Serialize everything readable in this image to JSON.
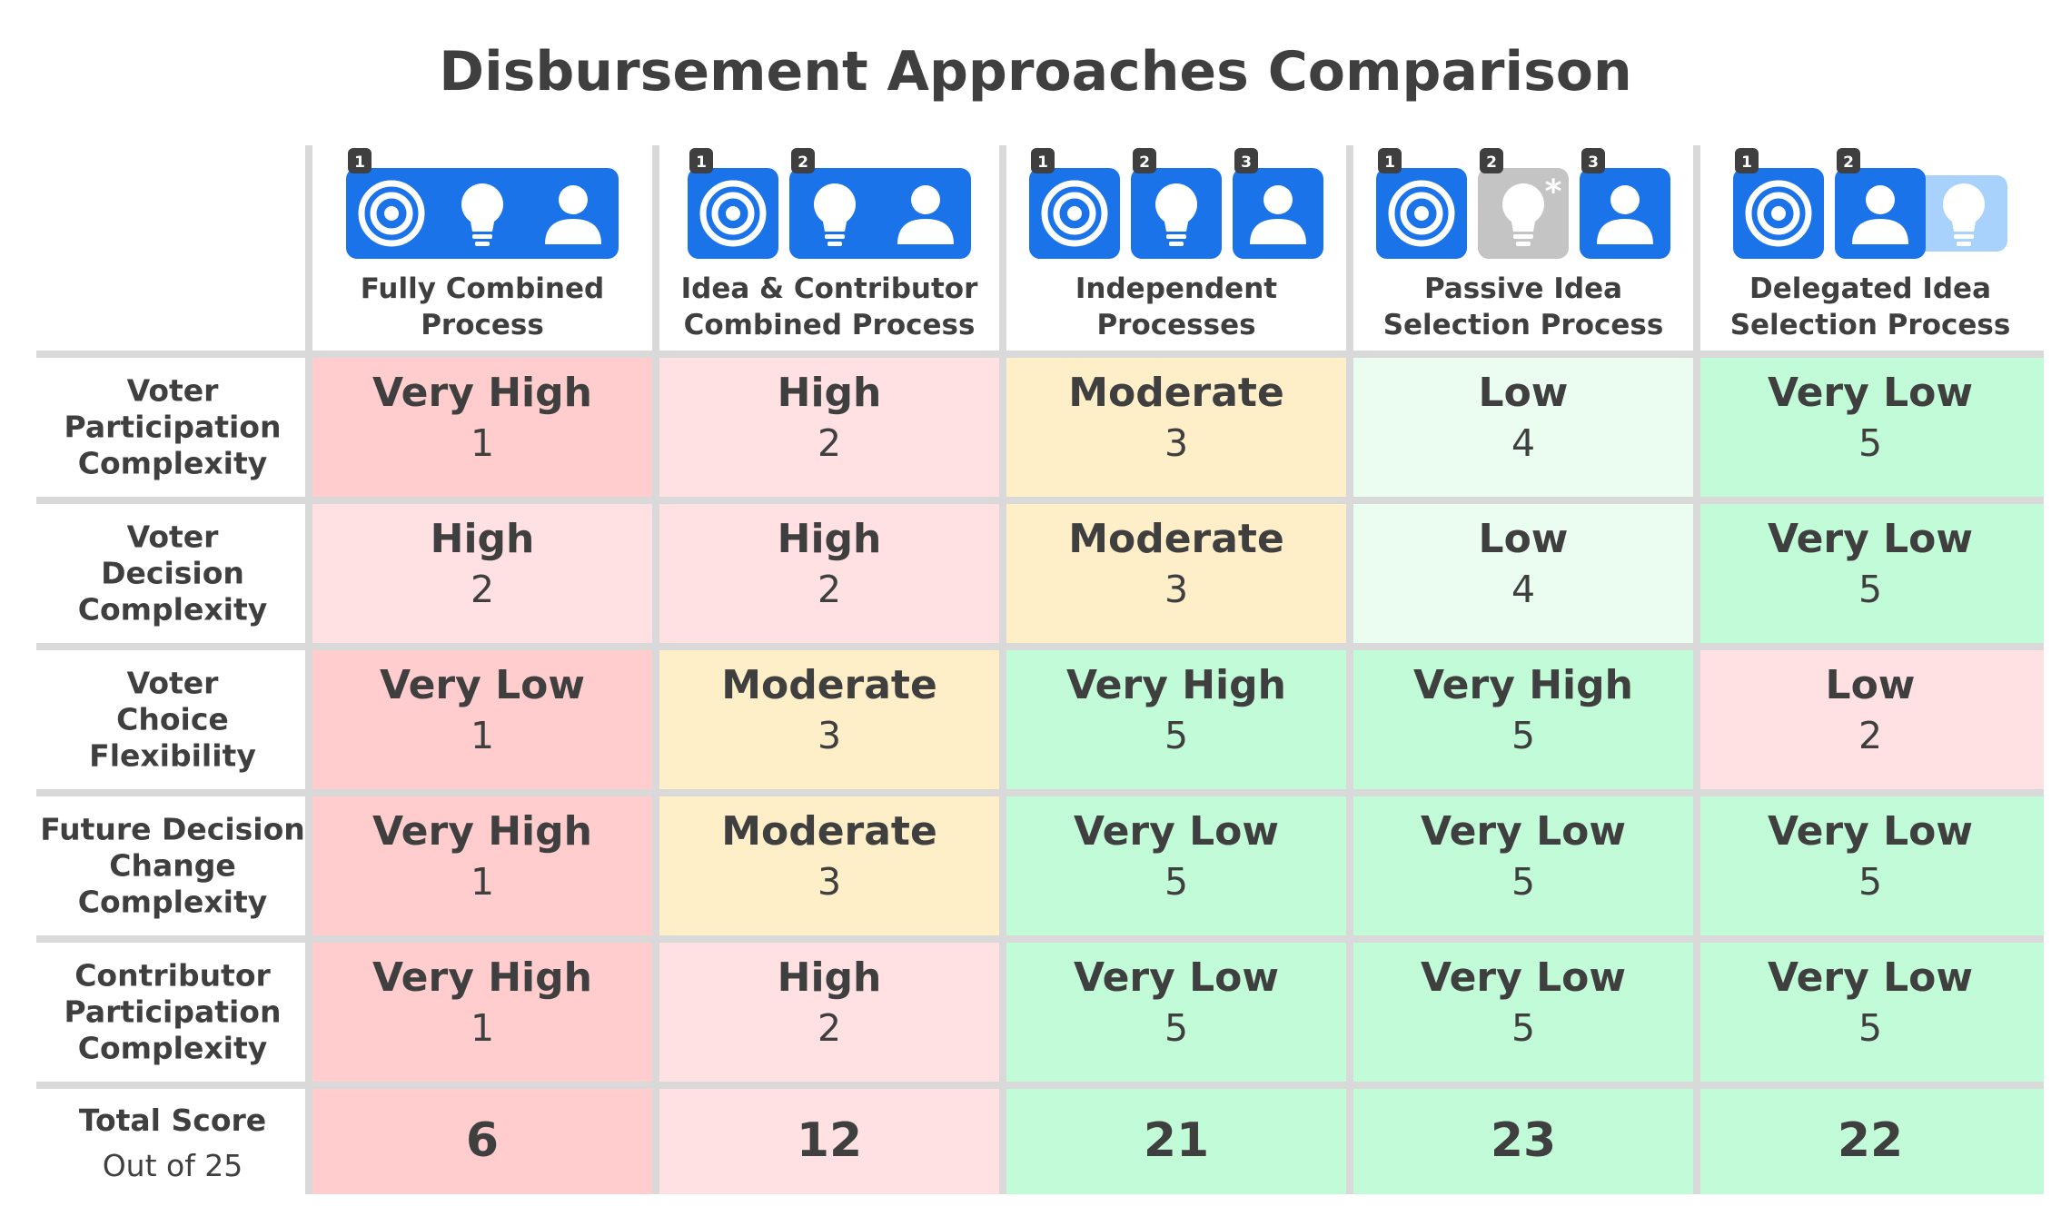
{
  "chart_data": {
    "type": "table",
    "title": "Disbursement Approaches Comparison",
    "columns": [
      {
        "label": [
          "Fully Combined",
          "Process"
        ],
        "groups": [
          {
            "badge": "1",
            "icons": [
              "target-icon",
              "bulb-icon",
              "person-icon"
            ]
          }
        ]
      },
      {
        "label": [
          "Idea & Contributor",
          "Combined Process"
        ],
        "groups": [
          {
            "badge": "1",
            "icons": [
              "target-icon"
            ]
          },
          {
            "badge": "2",
            "icons": [
              "bulb-icon",
              "person-icon"
            ]
          }
        ]
      },
      {
        "label": [
          "Independent",
          "Processes"
        ],
        "groups": [
          {
            "badge": "1",
            "icons": [
              "target-icon"
            ]
          },
          {
            "badge": "2",
            "icons": [
              "bulb-icon"
            ]
          },
          {
            "badge": "3",
            "icons": [
              "person-icon"
            ]
          }
        ]
      },
      {
        "label": [
          "Passive Idea",
          "Selection Process"
        ],
        "groups": [
          {
            "badge": "1",
            "icons": [
              "target-icon"
            ]
          },
          {
            "badge": "2",
            "icons": [
              "bulb-passive-icon"
            ],
            "style": "passive"
          },
          {
            "badge": "3",
            "icons": [
              "person-icon"
            ]
          }
        ]
      },
      {
        "label": [
          "Delegated Idea",
          "Selection Process"
        ],
        "groups": [
          {
            "badge": "1",
            "icons": [
              "target-icon"
            ]
          },
          {
            "badge": "2",
            "icons": [
              "person-icon"
            ],
            "trailing": "bulb-delegated-icon"
          }
        ]
      }
    ],
    "rows": [
      {
        "label": [
          "Voter",
          "Participation",
          "Complexity"
        ],
        "cells": [
          {
            "level": "Very High",
            "score": 1
          },
          {
            "level": "High",
            "score": 2
          },
          {
            "level": "Moderate",
            "score": 3
          },
          {
            "level": "Low",
            "score": 4
          },
          {
            "level": "Very Low",
            "score": 5
          }
        ]
      },
      {
        "label": [
          "Voter",
          "Decision",
          "Complexity"
        ],
        "cells": [
          {
            "level": "High",
            "score": 2
          },
          {
            "level": "High",
            "score": 2
          },
          {
            "level": "Moderate",
            "score": 3
          },
          {
            "level": "Low",
            "score": 4
          },
          {
            "level": "Very Low",
            "score": 5
          }
        ]
      },
      {
        "label": [
          "Voter",
          "Choice",
          "Flexibility"
        ],
        "cells": [
          {
            "level": "Very Low",
            "score": 1
          },
          {
            "level": "Moderate",
            "score": 3
          },
          {
            "level": "Very High",
            "score": 5
          },
          {
            "level": "Very High",
            "score": 5
          },
          {
            "level": "Low",
            "score": 2
          }
        ]
      },
      {
        "label": [
          "Future Decision",
          "Change",
          "Complexity"
        ],
        "cells": [
          {
            "level": "Very High",
            "score": 1
          },
          {
            "level": "Moderate",
            "score": 3
          },
          {
            "level": "Very Low",
            "score": 5
          },
          {
            "level": "Very Low",
            "score": 5
          },
          {
            "level": "Very Low",
            "score": 5
          }
        ]
      },
      {
        "label": [
          "Contributor",
          "Participation",
          "Complexity"
        ],
        "cells": [
          {
            "level": "Very High",
            "score": 1
          },
          {
            "level": "High",
            "score": 2
          },
          {
            "level": "Very Low",
            "score": 5
          },
          {
            "level": "Very Low",
            "score": 5
          },
          {
            "level": "Very Low",
            "score": 5
          }
        ]
      }
    ],
    "total": {
      "label": "Total Score",
      "sublabel": "Out of 25",
      "values": [
        6,
        12,
        21,
        23,
        22
      ]
    }
  },
  "colors": {
    "score_1": "#ffcdcd",
    "score_2": "#ffe1e3",
    "score_3": "#ffefc8",
    "score_4": "#ebfdf0",
    "score_5": "#c2fbd8",
    "accent_blue": "#1a73e8",
    "passive_gray": "#c4c4c4",
    "delegated_light": "#a8d2fb",
    "badge": "#3f3f3f",
    "grid": "#d9d9d9"
  }
}
